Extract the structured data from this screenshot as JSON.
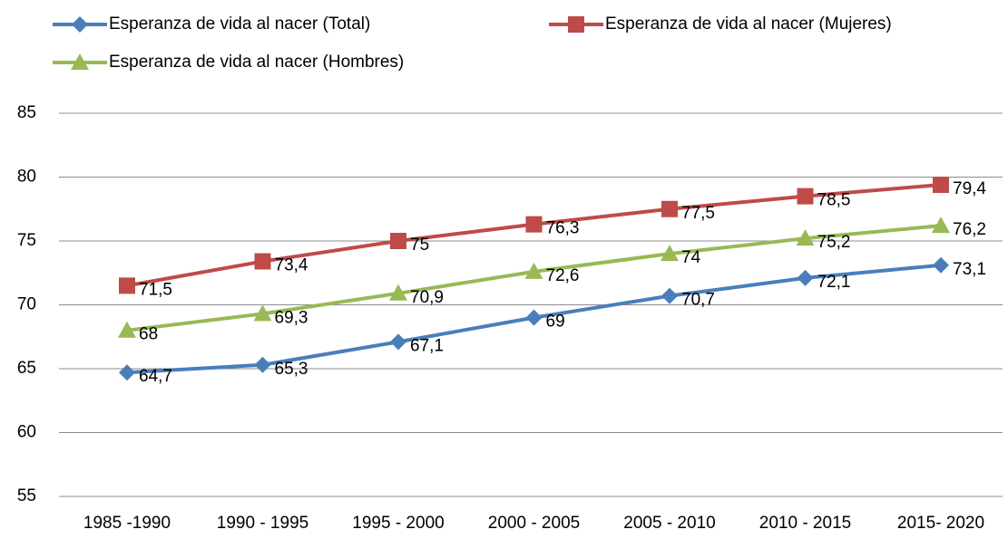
{
  "chart_data": {
    "type": "line",
    "categories": [
      "1985 -1990",
      "1990 - 1995",
      "1995 - 2000",
      "2000  - 2005",
      "2005  - 2010",
      "2010 - 2015",
      "2015- 2020"
    ],
    "series": [
      {
        "name": "Esperanza de vida  al nacer (Total)",
        "color": "#4a7ebb",
        "marker": "diamond",
        "values": [
          64.7,
          65.3,
          67.1,
          69,
          70.7,
          72.1,
          73.1
        ],
        "value_labels": [
          "64,7",
          "65,3",
          "67,1",
          "69",
          "70,7",
          "72,1",
          "73,1"
        ]
      },
      {
        "name": "Esperanza de vida  al nacer (Mujeres)",
        "color": "#be4b48",
        "marker": "square",
        "values": [
          71.5,
          73.4,
          75,
          76.3,
          77.5,
          78.5,
          79.4
        ],
        "value_labels": [
          "71,5",
          "73,4",
          "75",
          "76,3",
          "77,5",
          "78,5",
          "79,4"
        ]
      },
      {
        "name": "Esperanza de vida  al nacer (Hombres)",
        "color": "#98b954",
        "marker": "triangle",
        "values": [
          68,
          69.3,
          70.9,
          72.6,
          74,
          75.2,
          76.2
        ],
        "value_labels": [
          "68",
          "69,3",
          "70,9",
          "72,6",
          "74",
          "75,2",
          "76,2"
        ]
      }
    ],
    "ylim": [
      55,
      85
    ],
    "yticks": [
      55,
      60,
      65,
      70,
      75,
      80,
      85
    ],
    "grid": true,
    "legend": "top"
  }
}
